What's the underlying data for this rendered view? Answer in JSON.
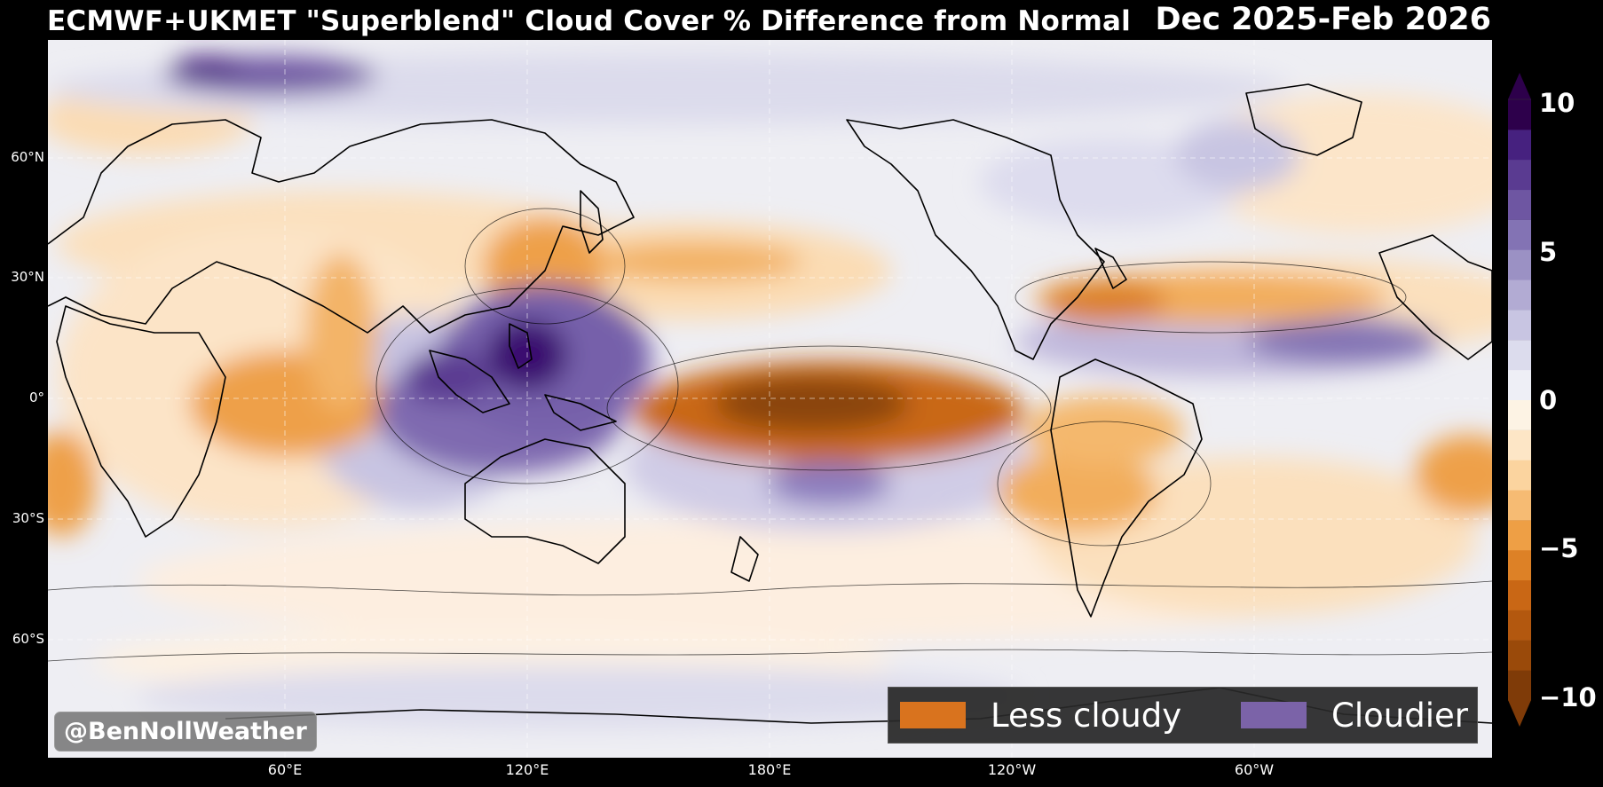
{
  "title": {
    "left": "ECMWF+UKMET \"Superblend\" Cloud Cover % Difference from Normal",
    "right": "Dec 2025-Feb 2026"
  },
  "map": {
    "projection": "equirectangular",
    "center_longitude": "180°",
    "latitude_labels": [
      "60°N",
      "30°N",
      "0°",
      "30°S",
      "60°S"
    ],
    "longitude_labels": [
      "60°E",
      "120°E",
      "180°E",
      "120°W",
      "60°W"
    ],
    "gridlines": "dashed",
    "anomaly_regions": [
      {
        "area": "Central/eastern equatorial Pacific",
        "sign": "less cloudy",
        "magnitude": "strong"
      },
      {
        "area": "Maritime Continent / Philippine Sea",
        "sign": "cloudier",
        "magnitude": "strong"
      },
      {
        "area": "Eastern Indian Ocean",
        "sign": "cloudier",
        "magnitude": "moderate"
      },
      {
        "area": "Western Indian Ocean / East Africa",
        "sign": "less cloudy",
        "magnitude": "moderate"
      },
      {
        "area": "East China Sea / Korea",
        "sign": "less cloudy",
        "magnitude": "moderate"
      },
      {
        "area": "Gulf of Mexico / US Southeast",
        "sign": "less cloudy",
        "magnitude": "moderate"
      },
      {
        "area": "Subtropical North Atlantic",
        "sign": "less cloudy",
        "magnitude": "weak"
      },
      {
        "area": "Caribbean / tropical Atlantic",
        "sign": "cloudier",
        "magnitude": "moderate"
      },
      {
        "area": "Northern Scandinavia / Barents Sea",
        "sign": "cloudier",
        "magnitude": "moderate"
      },
      {
        "area": "Southeast Pacific",
        "sign": "less cloudy",
        "magnitude": "moderate"
      },
      {
        "area": "Southwest Pacific / South Pacific Convergence Zone",
        "sign": "cloudier",
        "magnitude": "moderate"
      }
    ]
  },
  "legend": {
    "items": [
      {
        "label": "Less cloudy",
        "color": "#d9731e"
      },
      {
        "label": "Cloudier",
        "color": "#7b63a8"
      }
    ]
  },
  "credit": "@BenNollWeather",
  "colorbar": {
    "ticks": [
      "10",
      "5",
      "0",
      "−5",
      "−10"
    ],
    "min": -10,
    "max": 10,
    "extend": "both",
    "colors_low_to_high": [
      "#7f3b08",
      "#9a4a0a",
      "#b3580f",
      "#c96715",
      "#dd8126",
      "#ee9f45",
      "#f6bb73",
      "#fbd49f",
      "#fde6c6",
      "#fdf3e4",
      "#eeeff6",
      "#dcdced",
      "#c8c5e2",
      "#b2abd3",
      "#9b91c4",
      "#8373b4",
      "#6e56a2",
      "#5a3b91",
      "#46217f",
      "#2d004b"
    ]
  }
}
